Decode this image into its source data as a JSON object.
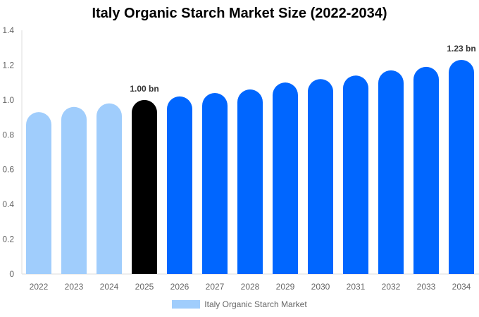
{
  "chart_data": {
    "type": "bar",
    "title": "Italy Organic Starch Market Size (2022-2034)",
    "xlabel": "",
    "ylabel": "",
    "categories": [
      "2022",
      "2023",
      "2024",
      "2025",
      "2026",
      "2027",
      "2028",
      "2029",
      "2030",
      "2031",
      "2032",
      "2033",
      "2034"
    ],
    "series": [
      {
        "name": "Italy Organic Starch Market",
        "values": [
          0.93,
          0.96,
          0.98,
          1.0,
          1.02,
          1.04,
          1.06,
          1.1,
          1.12,
          1.14,
          1.17,
          1.19,
          1.23
        ]
      }
    ],
    "ylim": [
      0,
      1.4
    ],
    "yticks": [
      "0",
      "0.2",
      "0.4",
      "0.6",
      "0.8",
      "1.0",
      "1.2",
      "1.4"
    ],
    "grid": false,
    "legend_position": "bottom",
    "data_labels": {
      "2025": "1.00 bn",
      "2034": "1.23 bn"
    },
    "colors": {
      "historical": "#a0cdfc",
      "current": "#000000",
      "forecast": "#0066ff"
    }
  }
}
